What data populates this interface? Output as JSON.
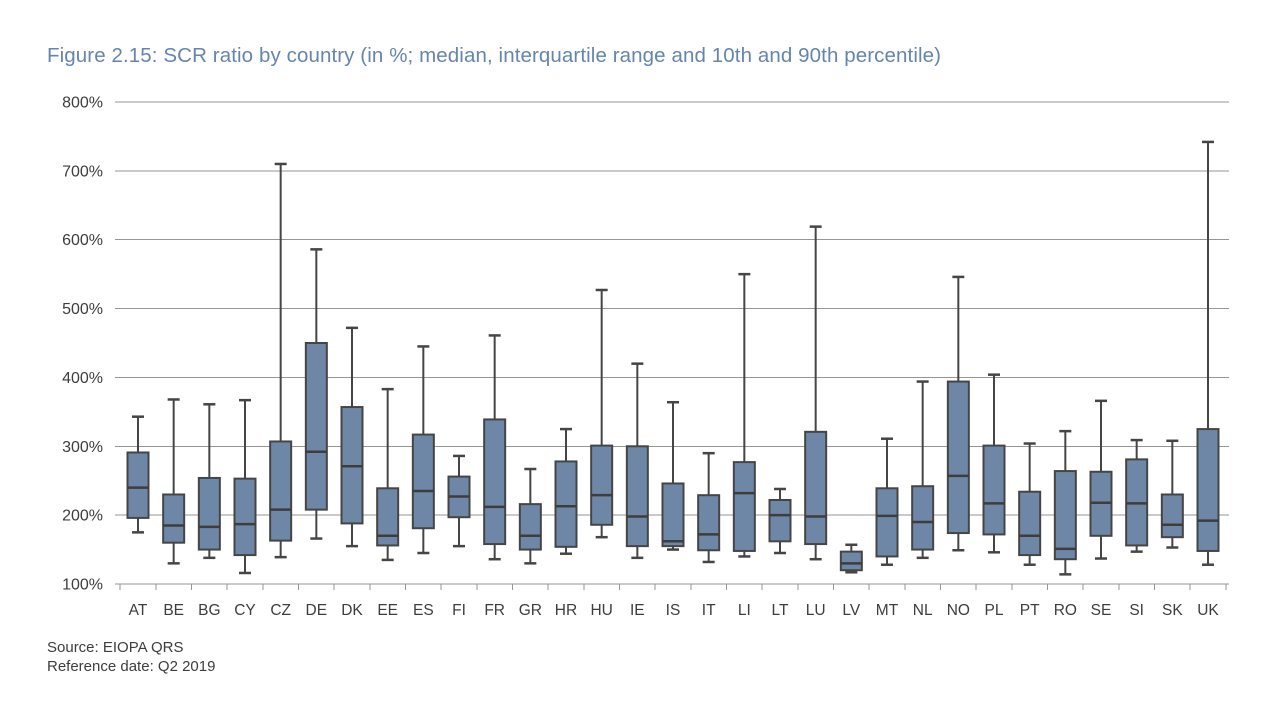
{
  "figure": {
    "title": "Figure 2.15: SCR ratio by country (in %; median, interquartile range and 10th and 90th percentile)",
    "source_line": "Source: EIOPA QRS",
    "reference_line": "Reference date: Q2 2019"
  },
  "colors": {
    "title": "#6486ad",
    "box_fill": "#6e87a7",
    "box_stroke": "#454545",
    "median_stroke": "#3d3d3d",
    "whisker_stroke": "#454545",
    "gridline": "#969696",
    "axis": "#969696",
    "tick_label": "#3d3d3d"
  },
  "chart_data": {
    "type": "boxplot",
    "title": "Figure 2.15: SCR ratio by country (in %; median, interquartile range and 10th and 90th percentile)",
    "xlabel": "",
    "ylabel": "",
    "unit": "%",
    "ylim": [
      100,
      800
    ],
    "y_tick_step": 100,
    "y_tick_labels": [
      "100%",
      "200%",
      "300%",
      "400%",
      "500%",
      "600%",
      "700%",
      "800%"
    ],
    "grid": "horizontal",
    "legend": "none",
    "whisker_definition": "10th and 90th percentile",
    "box_definition": "interquartile range with median",
    "categories": [
      "AT",
      "BE",
      "BG",
      "CY",
      "CZ",
      "DE",
      "DK",
      "EE",
      "ES",
      "FI",
      "FR",
      "GR",
      "HR",
      "HU",
      "IE",
      "IS",
      "IT",
      "LI",
      "LT",
      "LU",
      "LV",
      "MT",
      "NL",
      "NO",
      "PL",
      "PT",
      "RO",
      "SE",
      "SI",
      "SK",
      "UK"
    ],
    "values": [
      {
        "country": "AT",
        "p10": 175,
        "q1": 196,
        "median": 240,
        "q3": 291,
        "p90": 343
      },
      {
        "country": "BE",
        "p10": 130,
        "q1": 160,
        "median": 185,
        "q3": 230,
        "p90": 368
      },
      {
        "country": "BG",
        "p10": 138,
        "q1": 150,
        "median": 183,
        "q3": 254,
        "p90": 361
      },
      {
        "country": "CY",
        "p10": 116,
        "q1": 142,
        "median": 187,
        "q3": 253,
        "p90": 367
      },
      {
        "country": "CZ",
        "p10": 139,
        "q1": 163,
        "median": 208,
        "q3": 307,
        "p90": 710
      },
      {
        "country": "DE",
        "p10": 166,
        "q1": 208,
        "median": 292,
        "q3": 450,
        "p90": 586
      },
      {
        "country": "DK",
        "p10": 155,
        "q1": 188,
        "median": 271,
        "q3": 357,
        "p90": 472
      },
      {
        "country": "EE",
        "p10": 135,
        "q1": 156,
        "median": 170,
        "q3": 239,
        "p90": 383
      },
      {
        "country": "ES",
        "p10": 145,
        "q1": 181,
        "median": 235,
        "q3": 317,
        "p90": 445
      },
      {
        "country": "FI",
        "p10": 155,
        "q1": 197,
        "median": 227,
        "q3": 256,
        "p90": 286
      },
      {
        "country": "FR",
        "p10": 136,
        "q1": 158,
        "median": 212,
        "q3": 339,
        "p90": 461
      },
      {
        "country": "GR",
        "p10": 130,
        "q1": 150,
        "median": 170,
        "q3": 216,
        "p90": 267
      },
      {
        "country": "HR",
        "p10": 144,
        "q1": 154,
        "median": 213,
        "q3": 278,
        "p90": 325
      },
      {
        "country": "HU",
        "p10": 168,
        "q1": 186,
        "median": 229,
        "q3": 301,
        "p90": 527
      },
      {
        "country": "IE",
        "p10": 138,
        "q1": 155,
        "median": 198,
        "q3": 300,
        "p90": 420
      },
      {
        "country": "IS",
        "p10": 150,
        "q1": 155,
        "median": 162,
        "q3": 246,
        "p90": 364
      },
      {
        "country": "IT",
        "p10": 132,
        "q1": 149,
        "median": 172,
        "q3": 229,
        "p90": 290
      },
      {
        "country": "LI",
        "p10": 140,
        "q1": 148,
        "median": 232,
        "q3": 277,
        "p90": 550
      },
      {
        "country": "LT",
        "p10": 145,
        "q1": 162,
        "median": 200,
        "q3": 222,
        "p90": 238
      },
      {
        "country": "LU",
        "p10": 136,
        "q1": 158,
        "median": 198,
        "q3": 321,
        "p90": 619
      },
      {
        "country": "LV",
        "p10": 117,
        "q1": 120,
        "median": 130,
        "q3": 147,
        "p90": 157
      },
      {
        "country": "MT",
        "p10": 128,
        "q1": 140,
        "median": 199,
        "q3": 239,
        "p90": 311
      },
      {
        "country": "NL",
        "p10": 138,
        "q1": 150,
        "median": 190,
        "q3": 242,
        "p90": 394
      },
      {
        "country": "NO",
        "p10": 149,
        "q1": 174,
        "median": 257,
        "q3": 394,
        "p90": 546
      },
      {
        "country": "PL",
        "p10": 146,
        "q1": 172,
        "median": 217,
        "q3": 301,
        "p90": 404
      },
      {
        "country": "PT",
        "p10": 128,
        "q1": 142,
        "median": 170,
        "q3": 234,
        "p90": 304
      },
      {
        "country": "RO",
        "p10": 114,
        "q1": 136,
        "median": 151,
        "q3": 264,
        "p90": 322
      },
      {
        "country": "SE",
        "p10": 137,
        "q1": 170,
        "median": 218,
        "q3": 263,
        "p90": 366
      },
      {
        "country": "SI",
        "p10": 147,
        "q1": 156,
        "median": 217,
        "q3": 281,
        "p90": 309
      },
      {
        "country": "SK",
        "p10": 153,
        "q1": 168,
        "median": 186,
        "q3": 230,
        "p90": 308
      },
      {
        "country": "UK",
        "p10": 128,
        "q1": 148,
        "median": 192,
        "q3": 325,
        "p90": 742
      }
    ]
  }
}
